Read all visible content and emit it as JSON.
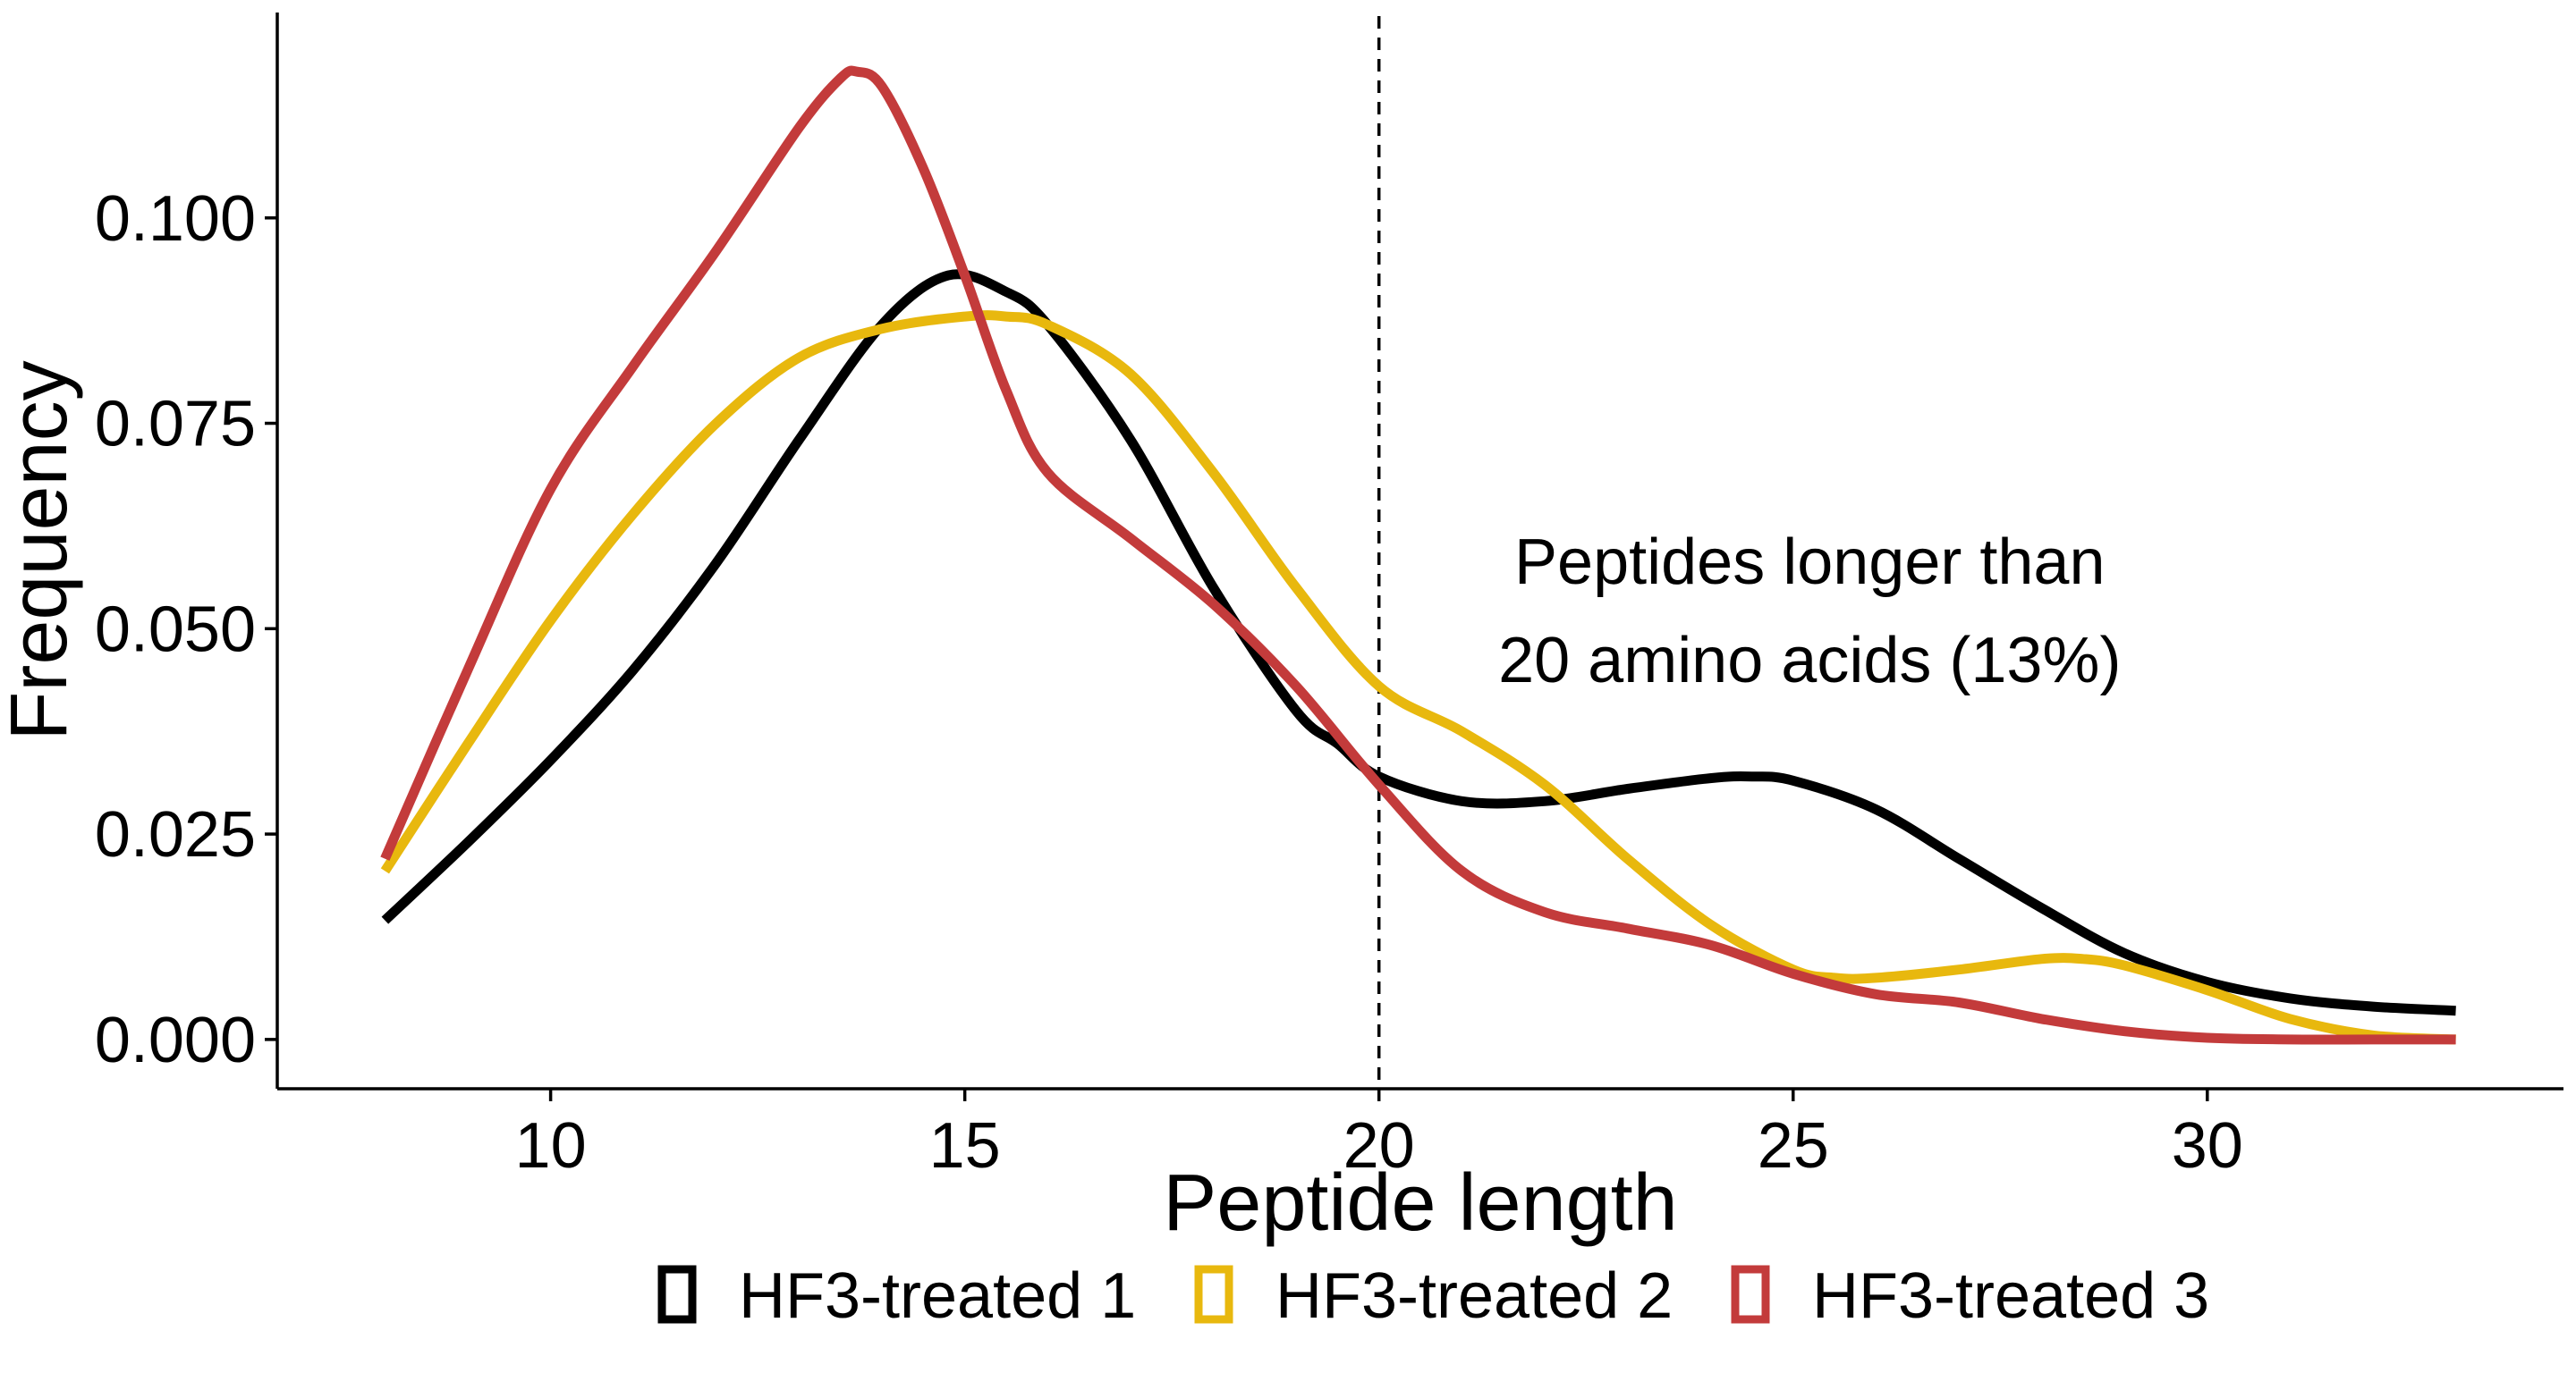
{
  "chart_data": {
    "type": "line",
    "xlabel": "Peptide length",
    "ylabel": "Frequency",
    "xlim": [
      6.7,
      34.3
    ],
    "ylim": [
      -0.006,
      0.125
    ],
    "x_ticks": [
      10,
      15,
      20,
      25,
      30
    ],
    "x_tick_labels": [
      "10",
      "15",
      "20",
      "25",
      "30"
    ],
    "y_ticks": [
      0,
      0.025,
      0.05,
      0.075,
      0.1
    ],
    "y_tick_labels": [
      "0.000",
      "0.025",
      "0.050",
      "0.075",
      "0.100"
    ],
    "grid": false,
    "legend_position": "bottom",
    "reference_line": {
      "x": 20,
      "style": "dashed"
    },
    "annotation": {
      "lines": [
        "Peptides longer than",
        "20 amino acids (13%)"
      ],
      "x": 25.2,
      "y": [
        0.0555,
        0.0435
      ]
    },
    "series": [
      {
        "name": "HF3-treated 1",
        "color": "#000000",
        "x": [
          8,
          9,
          10,
          11,
          12,
          13,
          14,
          14.8,
          15.5,
          16,
          17,
          18,
          19,
          19.5,
          20,
          21,
          22,
          23,
          24,
          24.5,
          25,
          26,
          27,
          28,
          29,
          30,
          31,
          32,
          33
        ],
        "y": [
          0.0145,
          0.024,
          0.034,
          0.045,
          0.058,
          0.073,
          0.087,
          0.093,
          0.091,
          0.087,
          0.073,
          0.055,
          0.04,
          0.036,
          0.032,
          0.029,
          0.029,
          0.0305,
          0.0318,
          0.032,
          0.0315,
          0.028,
          0.022,
          0.016,
          0.0105,
          0.007,
          0.005,
          0.004,
          0.0035
        ]
      },
      {
        "name": "HF3-treated 2",
        "color": "#E8B80E",
        "x": [
          8,
          9,
          10,
          11,
          12,
          13,
          14,
          15,
          15.5,
          16,
          17,
          18,
          19,
          20,
          21,
          22,
          23,
          24,
          25,
          25.5,
          26,
          27,
          28,
          28.5,
          29,
          30,
          31,
          32,
          33
        ],
        "y": [
          0.0205,
          0.036,
          0.051,
          0.064,
          0.075,
          0.083,
          0.0865,
          0.088,
          0.088,
          0.087,
          0.081,
          0.069,
          0.055,
          0.043,
          0.0375,
          0.031,
          0.022,
          0.014,
          0.0085,
          0.0075,
          0.0075,
          0.0085,
          0.0098,
          0.0098,
          0.009,
          0.006,
          0.0025,
          0.0005,
          0.0
        ]
      },
      {
        "name": "HF3-treated 3",
        "color": "#C33B3B",
        "x": [
          8,
          9,
          10,
          11,
          12,
          13,
          13.5,
          13.7,
          14,
          14.5,
          15,
          15.5,
          16,
          17,
          18,
          19,
          20,
          21,
          22,
          23,
          24,
          25,
          26,
          27,
          28,
          29,
          30,
          31,
          32,
          33
        ],
        "y": [
          0.022,
          0.045,
          0.067,
          0.082,
          0.096,
          0.111,
          0.117,
          0.1178,
          0.116,
          0.106,
          0.093,
          0.079,
          0.069,
          0.061,
          0.053,
          0.043,
          0.031,
          0.0205,
          0.0155,
          0.0135,
          0.0115,
          0.008,
          0.0055,
          0.0045,
          0.0025,
          0.001,
          0.0002,
          0.0,
          0.0,
          0.0
        ]
      }
    ]
  }
}
